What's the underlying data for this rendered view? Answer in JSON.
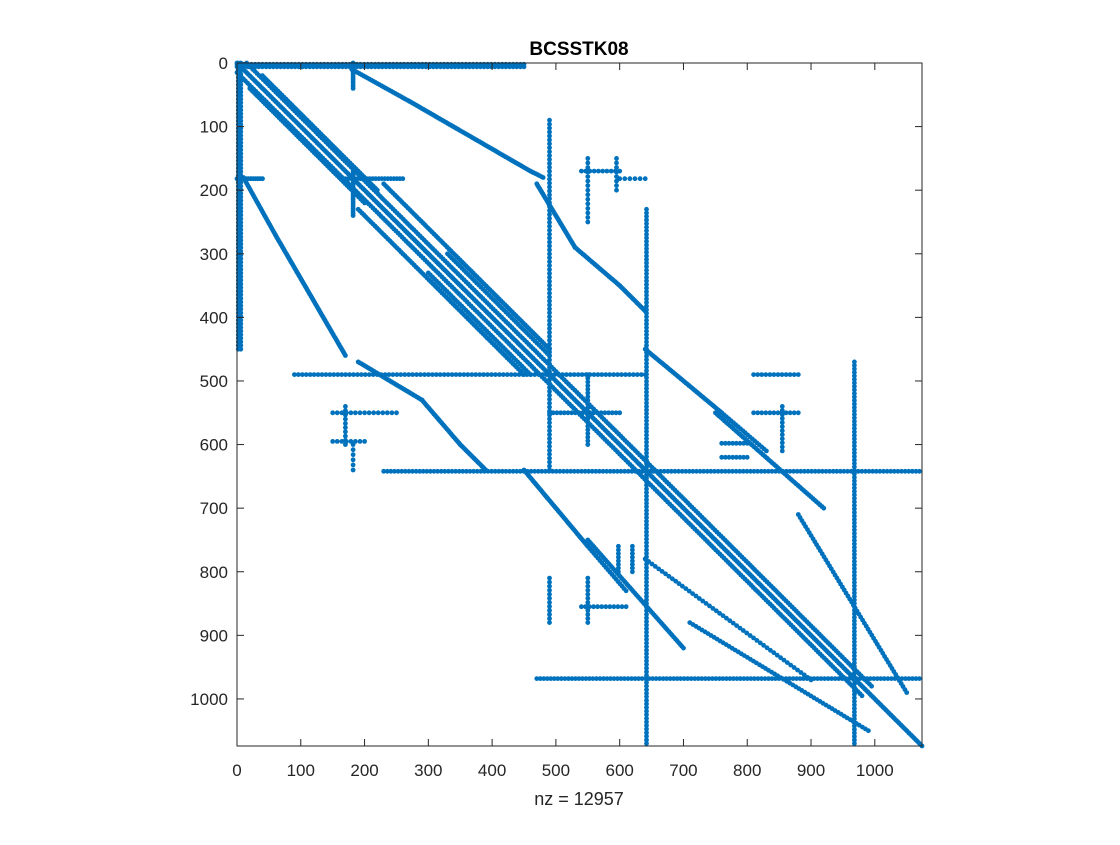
{
  "figure": {
    "background": "#ffffff"
  },
  "chart_data": {
    "type": "scatter",
    "title": "BCSSTK08",
    "xlabel": "nz = 12957",
    "ylabel": "",
    "xlim": [
      0,
      1074
    ],
    "ylim": [
      0,
      1074
    ],
    "y_reversed": true,
    "grid": false,
    "legend": "none",
    "marker_color": "#0072BD",
    "xticks": [
      0,
      100,
      200,
      300,
      400,
      500,
      600,
      700,
      800,
      900,
      1000
    ],
    "yticks": [
      0,
      100,
      200,
      300,
      400,
      500,
      600,
      700,
      800,
      900,
      1000
    ],
    "dense_segments": [
      {
        "name": "main-diagonal",
        "x1": 0,
        "y1": 0,
        "x2": 1074,
        "y2": 1074,
        "n": 420
      },
      {
        "name": "diag-offset-a",
        "x1": 0,
        "y1": 15,
        "x2": 980,
        "y2": 995,
        "n": 300
      },
      {
        "name": "diag-offset-b",
        "x1": 15,
        "y1": 0,
        "x2": 995,
        "y2": 980,
        "n": 300
      },
      {
        "name": "diag-offset-c",
        "x1": 20,
        "y1": 40,
        "x2": 200,
        "y2": 220,
        "n": 60
      },
      {
        "name": "diag-offset-d",
        "x1": 40,
        "y1": 20,
        "x2": 220,
        "y2": 200,
        "n": 60
      },
      {
        "name": "diag-offset-e",
        "x1": 190,
        "y1": 230,
        "x2": 450,
        "y2": 490,
        "n": 90
      },
      {
        "name": "diag-offset-f",
        "x1": 230,
        "y1": 190,
        "x2": 490,
        "y2": 450,
        "n": 90
      },
      {
        "name": "diag-offset-g",
        "x1": 300,
        "y1": 330,
        "x2": 460,
        "y2": 490,
        "n": 50
      },
      {
        "name": "diag-offset-h",
        "x1": 330,
        "y1": 300,
        "x2": 490,
        "y2": 460,
        "n": 50
      },
      {
        "name": "upper-band-1",
        "x1": 180,
        "y1": 10,
        "x2": 270,
        "y2": 60,
        "n": 30
      },
      {
        "name": "upper-band-2",
        "x1": 270,
        "y1": 60,
        "x2": 460,
        "y2": 170,
        "n": 70
      },
      {
        "name": "upper-band-3",
        "x1": 460,
        "y1": 170,
        "x2": 480,
        "y2": 180,
        "n": 8
      },
      {
        "name": "upper-band-4",
        "x1": 470,
        "y1": 190,
        "x2": 530,
        "y2": 290,
        "n": 40
      },
      {
        "name": "upper-band-5",
        "x1": 530,
        "y1": 290,
        "x2": 600,
        "y2": 350,
        "n": 30
      },
      {
        "name": "upper-band-6",
        "x1": 600,
        "y1": 350,
        "x2": 640,
        "y2": 390,
        "n": 20
      },
      {
        "name": "upper-band-7",
        "x1": 640,
        "y1": 450,
        "x2": 760,
        "y2": 550,
        "n": 50
      },
      {
        "name": "upper-band-8",
        "x1": 750,
        "y1": 550,
        "x2": 920,
        "y2": 700,
        "n": 60
      },
      {
        "name": "upper-band-9",
        "x1": 760,
        "y1": 550,
        "x2": 830,
        "y2": 610,
        "n": 20
      },
      {
        "name": "upper-band-10",
        "x1": 880,
        "y1": 710,
        "x2": 1050,
        "y2": 990,
        "n": 60
      },
      {
        "name": "lower-band-1",
        "x1": 10,
        "y1": 180,
        "x2": 60,
        "y2": 270,
        "n": 30
      },
      {
        "name": "lower-band-2",
        "x1": 60,
        "y1": 270,
        "x2": 170,
        "y2": 460,
        "n": 70
      },
      {
        "name": "lower-band-3",
        "x1": 190,
        "y1": 470,
        "x2": 290,
        "y2": 530,
        "n": 40
      },
      {
        "name": "lower-band-4",
        "x1": 290,
        "y1": 530,
        "x2": 350,
        "y2": 600,
        "n": 30
      },
      {
        "name": "lower-band-5",
        "x1": 350,
        "y1": 600,
        "x2": 390,
        "y2": 640,
        "n": 20
      },
      {
        "name": "lower-band-6",
        "x1": 450,
        "y1": 640,
        "x2": 550,
        "y2": 760,
        "n": 50
      },
      {
        "name": "lower-band-7",
        "x1": 550,
        "y1": 750,
        "x2": 700,
        "y2": 920,
        "n": 60
      },
      {
        "name": "lower-band-8",
        "x1": 550,
        "y1": 760,
        "x2": 610,
        "y2": 830,
        "n": 20
      },
      {
        "name": "lower-band-9",
        "x1": 710,
        "y1": 880,
        "x2": 990,
        "y2": 1050,
        "n": 60
      },
      {
        "name": "lower-band-10",
        "x1": 640,
        "y1": 780,
        "x2": 900,
        "y2": 970,
        "n": 50
      },
      {
        "name": "vbar-col0",
        "x1": 2,
        "y1": 0,
        "x2": 2,
        "y2": 450,
        "n": 80
      },
      {
        "name": "vbar-col6",
        "x1": 6,
        "y1": 0,
        "x2": 6,
        "y2": 450,
        "n": 80
      },
      {
        "name": "hbar-row0",
        "x1": 0,
        "y1": 2,
        "x2": 450,
        "y2": 2,
        "n": 80
      },
      {
        "name": "hbar-row6",
        "x1": 0,
        "y1": 6,
        "x2": 450,
        "y2": 6,
        "n": 80
      },
      {
        "name": "vbar-180",
        "x1": 182,
        "y1": 0,
        "x2": 182,
        "y2": 40,
        "n": 12
      },
      {
        "name": "vbar-180b",
        "x1": 182,
        "y1": 170,
        "x2": 182,
        "y2": 240,
        "n": 20
      },
      {
        "name": "hbar-180",
        "x1": 0,
        "y1": 182,
        "x2": 40,
        "y2": 182,
        "n": 12
      },
      {
        "name": "hbar-180b",
        "x1": 170,
        "y1": 182,
        "x2": 260,
        "y2": 182,
        "n": 20
      },
      {
        "name": "vbar-490",
        "x1": 490,
        "y1": 90,
        "x2": 490,
        "y2": 640,
        "n": 90
      },
      {
        "name": "hbar-490",
        "x1": 90,
        "y1": 490,
        "x2": 640,
        "y2": 490,
        "n": 90
      },
      {
        "name": "vbar-550",
        "x1": 550,
        "y1": 150,
        "x2": 550,
        "y2": 250,
        "n": 15
      },
      {
        "name": "vbar-550b",
        "x1": 550,
        "y1": 490,
        "x2": 550,
        "y2": 600,
        "n": 20
      },
      {
        "name": "hbar-550",
        "x1": 150,
        "y1": 550,
        "x2": 250,
        "y2": 550,
        "n": 15
      },
      {
        "name": "hbar-550b",
        "x1": 490,
        "y1": 550,
        "x2": 600,
        "y2": 550,
        "n": 20
      },
      {
        "name": "vbar-642",
        "x1": 642,
        "y1": 230,
        "x2": 642,
        "y2": 1070,
        "n": 150
      },
      {
        "name": "hbar-642",
        "x1": 230,
        "y1": 642,
        "x2": 1070,
        "y2": 642,
        "n": 150
      },
      {
        "name": "vbar-968",
        "x1": 968,
        "y1": 470,
        "x2": 968,
        "y2": 1070,
        "n": 110
      },
      {
        "name": "hbar-968",
        "x1": 470,
        "y1": 968,
        "x2": 1070,
        "y2": 968,
        "n": 110
      },
      {
        "name": "vbar-490-low",
        "x1": 490,
        "y1": 810,
        "x2": 490,
        "y2": 880,
        "n": 12
      },
      {
        "name": "hbar-490-low",
        "x1": 810,
        "y1": 490,
        "x2": 880,
        "y2": 490,
        "n": 12
      },
      {
        "name": "vbar-550-low",
        "x1": 550,
        "y1": 810,
        "x2": 550,
        "y2": 880,
        "n": 12
      },
      {
        "name": "hbar-550-low",
        "x1": 810,
        "y1": 550,
        "x2": 880,
        "y2": 550,
        "n": 12
      },
      {
        "name": "vbar-595",
        "x1": 595,
        "y1": 150,
        "x2": 595,
        "y2": 200,
        "n": 8
      },
      {
        "name": "hbar-595",
        "x1": 150,
        "y1": 595,
        "x2": 200,
        "y2": 595,
        "n": 8
      },
      {
        "name": "vbar-620",
        "x1": 620,
        "y1": 760,
        "x2": 620,
        "y2": 800,
        "n": 8
      },
      {
        "name": "hbar-620",
        "x1": 760,
        "y1": 620,
        "x2": 800,
        "y2": 620,
        "n": 8
      },
      {
        "name": "vbar-600",
        "x1": 598,
        "y1": 760,
        "x2": 598,
        "y2": 800,
        "n": 8
      },
      {
        "name": "hbar-600",
        "x1": 760,
        "y1": 598,
        "x2": 800,
        "y2": 598,
        "n": 8
      },
      {
        "name": "vbar-855",
        "x1": 855,
        "y1": 540,
        "x2": 855,
        "y2": 610,
        "n": 12
      },
      {
        "name": "hbar-855",
        "x1": 540,
        "y1": 855,
        "x2": 610,
        "y2": 855,
        "n": 12
      },
      {
        "name": "vbar-180-low",
        "x1": 182,
        "y1": 600,
        "x2": 182,
        "y2": 640,
        "n": 6
      },
      {
        "name": "hbar-180-low",
        "x1": 600,
        "y1": 182,
        "x2": 640,
        "y2": 182,
        "n": 6
      },
      {
        "name": "vbar-170",
        "x1": 170,
        "y1": 540,
        "x2": 170,
        "y2": 600,
        "n": 10
      },
      {
        "name": "hbar-170",
        "x1": 540,
        "y1": 170,
        "x2": 600,
        "y2": 170,
        "n": 10
      }
    ]
  }
}
